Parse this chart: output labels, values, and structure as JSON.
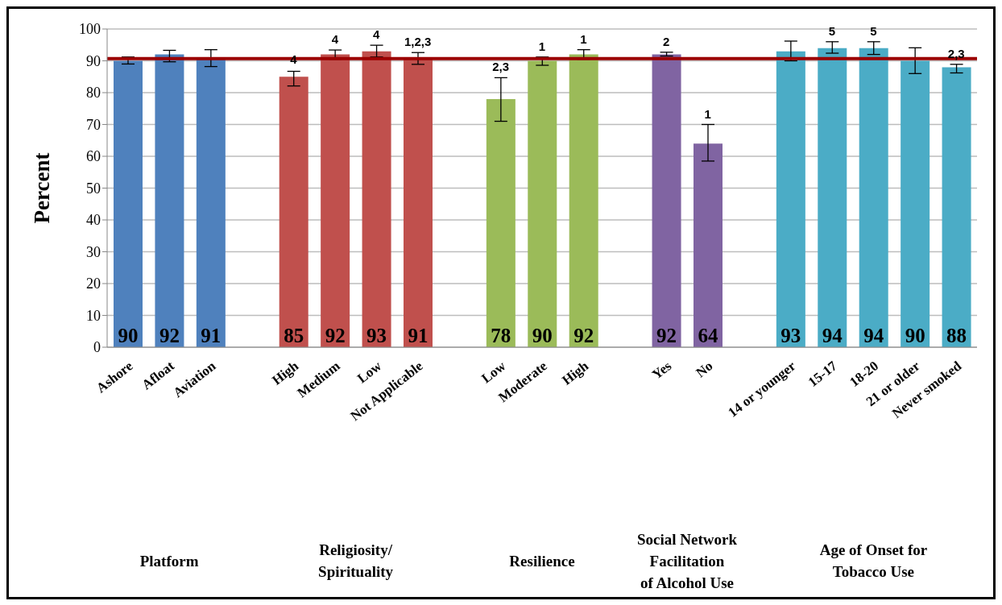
{
  "chart_data": {
    "type": "bar",
    "ylabel": "Percent",
    "categories": [
      "Ashore",
      "Afloat",
      "Aviation",
      "High",
      "Medium",
      "Low",
      "Not Applicable",
      "Low",
      "Moderate",
      "High",
      "Yes",
      "No",
      "14 or younger",
      "15-17",
      "18-20",
      "21 or older",
      "Never smoked"
    ],
    "series": [
      {
        "color": "#4f81bd",
        "values": [
          90,
          92,
          91,
          null,
          null,
          null,
          null,
          null,
          null,
          null,
          null,
          null,
          null,
          null,
          null,
          null,
          null
        ],
        "errors": [
          [
            89,
            91.2
          ],
          [
            89.7,
            93.3
          ],
          [
            88.2,
            93.5
          ],
          null,
          null,
          null,
          null,
          null,
          null,
          null,
          null,
          null,
          null,
          null,
          null,
          null,
          null
        ]
      },
      {
        "color": "#c0504d",
        "values": [
          null,
          null,
          null,
          85,
          92,
          93,
          91,
          null,
          null,
          null,
          null,
          null,
          null,
          null,
          null,
          null,
          null
        ],
        "errors": [
          null,
          null,
          null,
          [
            82.1,
            86.7
          ],
          [
            90.5,
            93.4
          ],
          [
            91.2,
            94.9
          ],
          [
            88.9,
            92.6
          ],
          null,
          null,
          null,
          null,
          null,
          null,
          null,
          null,
          null,
          null
        ]
      },
      {
        "color": "#9bbb59",
        "values": [
          null,
          null,
          null,
          null,
          null,
          null,
          null,
          78,
          90,
          92,
          null,
          null,
          null,
          null,
          null,
          null,
          null
        ],
        "errors": [
          null,
          null,
          null,
          null,
          null,
          null,
          null,
          [
            71,
            84.7
          ],
          [
            88.6,
            91.2
          ],
          [
            90.5,
            93.5
          ],
          null,
          null,
          null,
          null,
          null,
          null,
          null
        ]
      },
      {
        "color": "#8064a2",
        "values": [
          null,
          null,
          null,
          null,
          null,
          null,
          null,
          null,
          null,
          null,
          92,
          64,
          null,
          null,
          null,
          null,
          null
        ],
        "errors": [
          null,
          null,
          null,
          null,
          null,
          null,
          null,
          null,
          null,
          null,
          [
            91.5,
            92.7
          ],
          [
            58.5,
            70
          ],
          null,
          null,
          null,
          null,
          null
        ]
      },
      {
        "color": "#4bacc6",
        "values": [
          null,
          null,
          null,
          null,
          null,
          null,
          null,
          null,
          null,
          null,
          null,
          null,
          93,
          94,
          94,
          90,
          88
        ],
        "errors": [
          null,
          null,
          null,
          null,
          null,
          null,
          null,
          null,
          null,
          null,
          null,
          null,
          [
            90,
            96.2
          ],
          [
            92.4,
            96
          ],
          [
            92,
            96
          ],
          [
            86,
            94.1
          ],
          [
            86.2,
            88.9
          ]
        ]
      }
    ],
    "ylim": [
      0,
      100
    ],
    "yticks": [
      0,
      10,
      20,
      30,
      40,
      50,
      60,
      70,
      80,
      90,
      100
    ],
    "grid": "y",
    "data_labels": true,
    "ref_lines": [
      {
        "axis": "y",
        "value": 90.7,
        "color": "#9b0000"
      }
    ],
    "annotations": [
      "Platform",
      "Religiosity/\nSpirituality",
      "Resilience",
      "Social Network\nFacilitation\nof Alcohol Use",
      "Age of Onset for\nTobacco Use",
      {
        "text": "4",
        "x": "High",
        "y": 87
      },
      {
        "text": "4",
        "x": "Medium",
        "y": 93.5
      },
      {
        "text": "4",
        "x": "Low",
        "y": 95
      },
      {
        "text": "1,2,3",
        "x": "Not Applicable",
        "y": 92.6
      },
      "2,3",
      {
        "text": "1",
        "x": "Moderate",
        "y": 91.2
      },
      "1",
      {
        "text": "2",
        "x": "Yes",
        "y": 92.7
      },
      {
        "text": "1",
        "x": "No",
        "y": 70
      },
      {
        "text": "5",
        "x": "15-17",
        "y": 96
      },
      {
        "text": "5",
        "x": "18-20",
        "y": 96
      },
      {
        "text": "2,3",
        "x": "Never smoked",
        "y": 88.9
      }
    ]
  }
}
